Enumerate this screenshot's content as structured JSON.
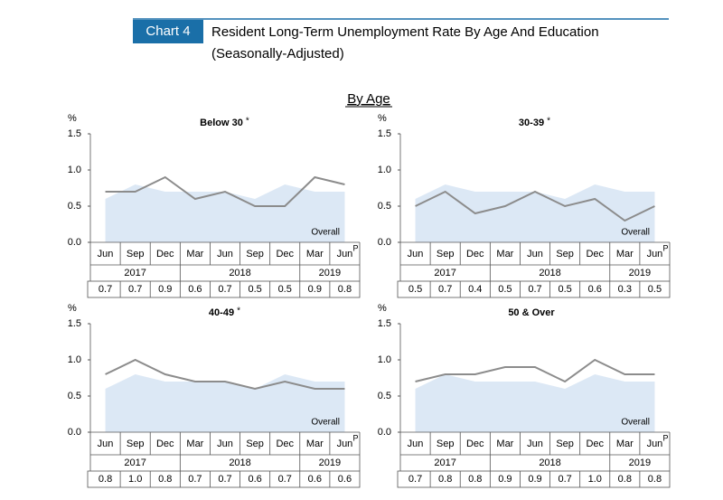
{
  "header": {
    "label": "Chart 4",
    "title": [
      "Resident Long-Term Unemployment Rate By Age And Education",
      "(Seasonally-Adjusted)"
    ]
  },
  "section": "By Age",
  "chart_data": [
    {
      "type": "line",
      "title": "Below 30",
      "title_marker": "*",
      "y_unit": "%",
      "categories": [
        "Jun",
        "Sep",
        "Dec",
        "Mar",
        "Jun",
        "Sep",
        "Dec",
        "Mar",
        "Jun"
      ],
      "last_category_marker": "P",
      "years": [
        "2017",
        "2018",
        "2019"
      ],
      "ylim": [
        0,
        1.5
      ],
      "yticks": [
        {
          "value": 0,
          "label": "0.0"
        },
        {
          "value": 0.5,
          "label": "0.5"
        },
        {
          "value": 1,
          "label": "1.0"
        },
        {
          "value": 1.5,
          "label": "1.5"
        }
      ],
      "series": [
        {
          "name": "Overall",
          "color": "#dce8f5",
          "values": [
            0.6,
            0.8,
            0.7,
            0.7,
            0.7,
            0.6,
            0.8,
            0.7,
            0.7
          ]
        },
        {
          "color": "#8c8c8c",
          "values": [
            0.7,
            0.7,
            0.9,
            0.6,
            0.7,
            0.5,
            0.5,
            0.9,
            0.8
          ],
          "value_labels": [
            "0.7",
            "0.7",
            "0.9",
            "0.6",
            "0.7",
            "0.5",
            "0.5",
            "0.9",
            "0.8"
          ]
        }
      ]
    },
    {
      "type": "line",
      "title": "30-39",
      "title_marker": "*",
      "y_unit": "%",
      "categories": [
        "Jun",
        "Sep",
        "Dec",
        "Mar",
        "Jun",
        "Sep",
        "Dec",
        "Mar",
        "Jun"
      ],
      "last_category_marker": "P",
      "years": [
        "2017",
        "2018",
        "2019"
      ],
      "ylim": [
        0,
        1.5
      ],
      "yticks": [
        {
          "value": 0,
          "label": "0.0"
        },
        {
          "value": 0.5,
          "label": "0.5"
        },
        {
          "value": 1,
          "label": "1.0"
        },
        {
          "value": 1.5,
          "label": "1.5"
        }
      ],
      "series": [
        {
          "name": "Overall",
          "color": "#dce8f5",
          "values": [
            0.6,
            0.8,
            0.7,
            0.7,
            0.7,
            0.6,
            0.8,
            0.7,
            0.7
          ]
        },
        {
          "color": "#8c8c8c",
          "values": [
            0.5,
            0.7,
            0.4,
            0.5,
            0.7,
            0.5,
            0.6,
            0.3,
            0.5
          ],
          "value_labels": [
            "0.5",
            "0.7",
            "0.4",
            "0.5",
            "0.7",
            "0.5",
            "0.6",
            "0.3",
            "0.5"
          ]
        }
      ]
    },
    {
      "type": "line",
      "title": "40-49",
      "title_marker": "*",
      "y_unit": "%",
      "categories": [
        "Jun",
        "Sep",
        "Dec",
        "Mar",
        "Jun",
        "Sep",
        "Dec",
        "Mar",
        "Jun"
      ],
      "last_category_marker": "P",
      "years": [
        "2017",
        "2018",
        "2019"
      ],
      "ylim": [
        0,
        1.5
      ],
      "yticks": [
        {
          "value": 0,
          "label": "0.0"
        },
        {
          "value": 0.5,
          "label": "0.5"
        },
        {
          "value": 1,
          "label": "1.0"
        },
        {
          "value": 1.5,
          "label": "1.5"
        }
      ],
      "series": [
        {
          "name": "Overall",
          "color": "#dce8f5",
          "values": [
            0.6,
            0.8,
            0.7,
            0.7,
            0.7,
            0.6,
            0.8,
            0.7,
            0.7
          ]
        },
        {
          "color": "#8c8c8c",
          "values": [
            0.8,
            1.0,
            0.8,
            0.7,
            0.7,
            0.6,
            0.7,
            0.6,
            0.6
          ],
          "value_labels": [
            "0.8",
            "1.0",
            "0.8",
            "0.7",
            "0.7",
            "0.6",
            "0.7",
            "0.6",
            "0.6"
          ]
        }
      ]
    },
    {
      "type": "line",
      "title": "50 & Over",
      "y_unit": "%",
      "categories": [
        "Jun",
        "Sep",
        "Dec",
        "Mar",
        "Jun",
        "Sep",
        "Dec",
        "Mar",
        "Jun"
      ],
      "last_category_marker": "P",
      "years": [
        "2017",
        "2018",
        "2019"
      ],
      "ylim": [
        0,
        1.5
      ],
      "yticks": [
        {
          "value": 0,
          "label": "0.0"
        },
        {
          "value": 0.5,
          "label": "0.5"
        },
        {
          "value": 1,
          "label": "1.0"
        },
        {
          "value": 1.5,
          "label": "1.5"
        }
      ],
      "series": [
        {
          "name": "Overall",
          "color": "#dce8f5",
          "values": [
            0.6,
            0.8,
            0.7,
            0.7,
            0.7,
            0.6,
            0.8,
            0.7,
            0.7
          ]
        },
        {
          "color": "#8c8c8c",
          "values": [
            0.7,
            0.8,
            0.8,
            0.9,
            0.9,
            0.7,
            1.0,
            0.8,
            0.8
          ],
          "value_labels": [
            "0.7",
            "0.8",
            "0.8",
            "0.9",
            "0.9",
            "0.7",
            "1.0",
            "0.8",
            "0.8"
          ]
        }
      ]
    }
  ]
}
